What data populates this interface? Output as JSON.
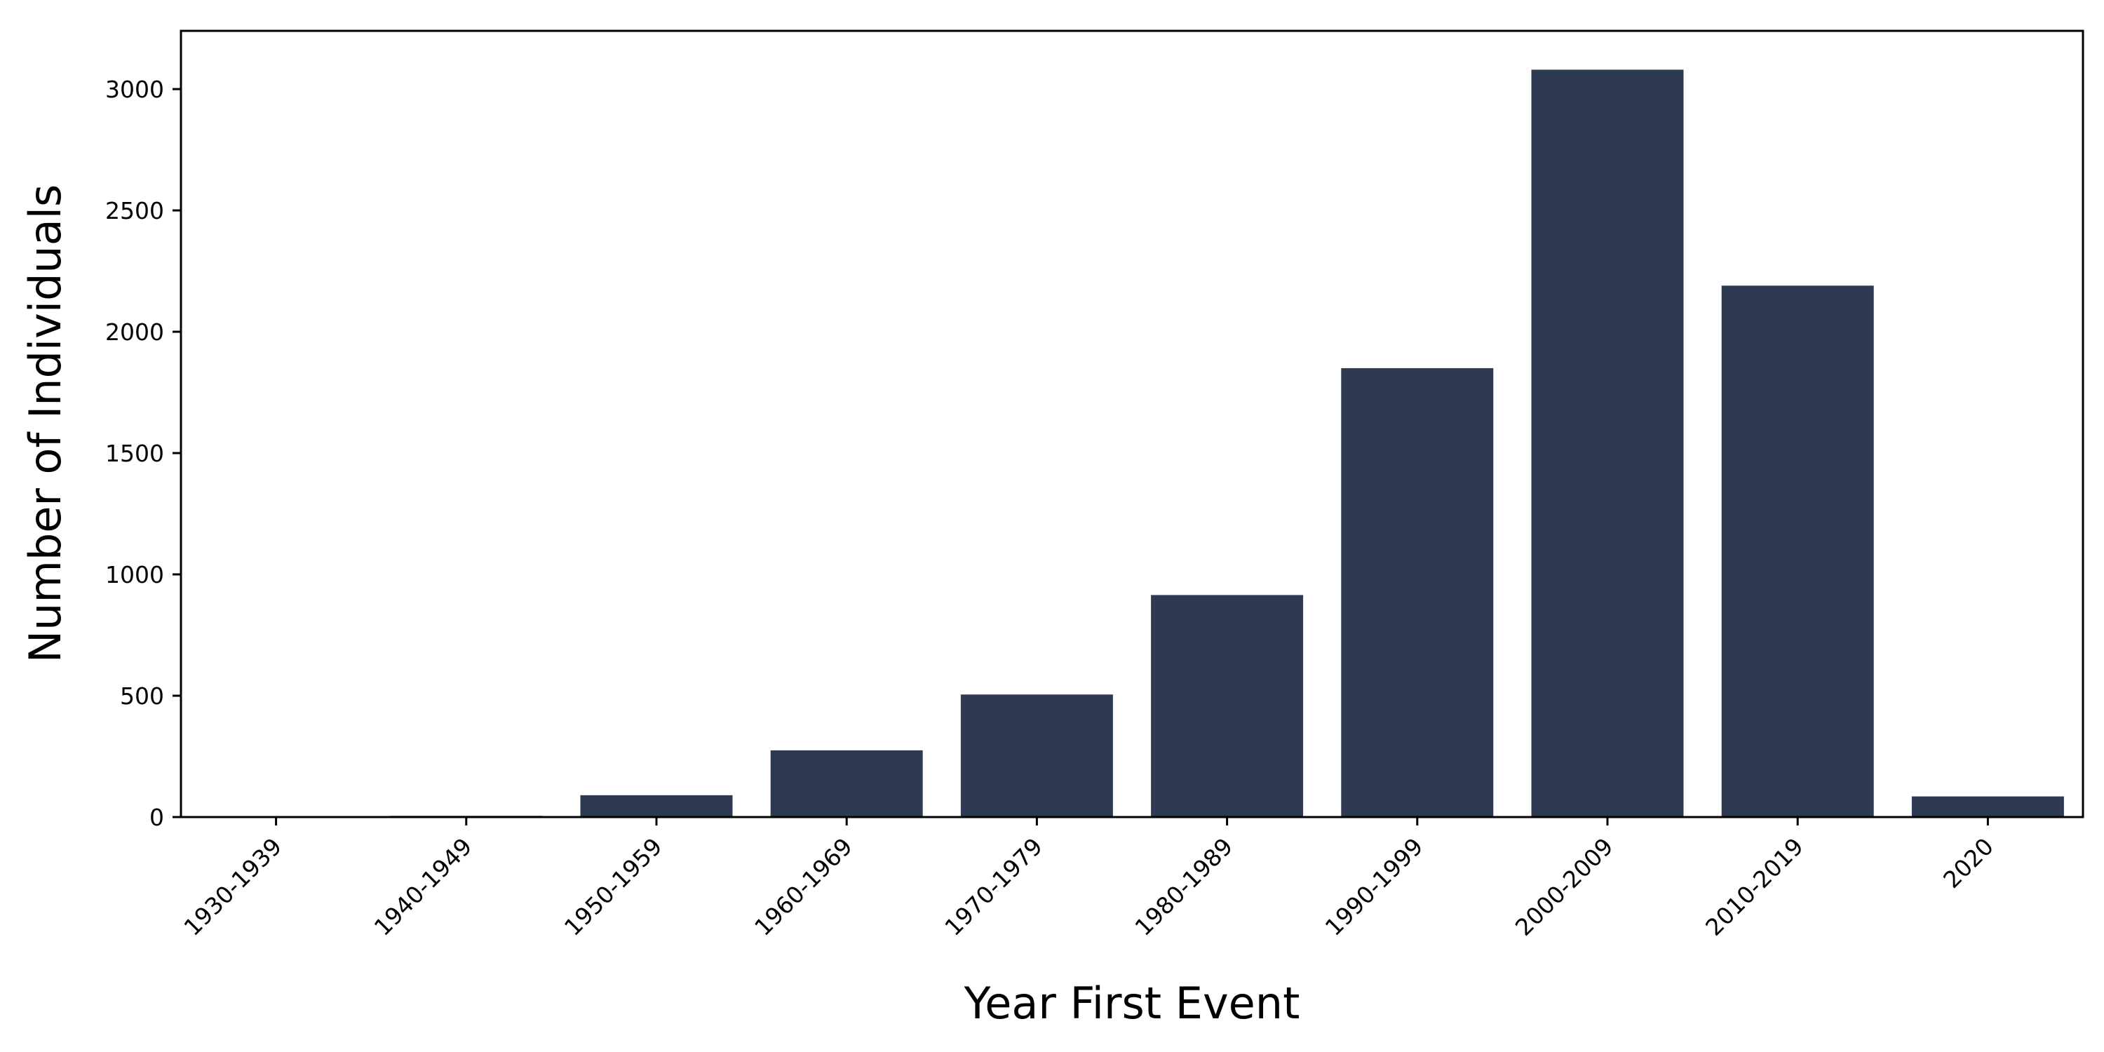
{
  "chart_data": {
    "type": "bar",
    "title": "",
    "xlabel": "Year First Event",
    "ylabel": "Number of Individuals",
    "categories": [
      "1930-1939",
      "1940-1949",
      "1950-1959",
      "1960-1969",
      "1970-1979",
      "1980-1989",
      "1990-1999",
      "2000-2009",
      "2010-2019",
      "2020"
    ],
    "values": [
      1,
      5,
      90,
      275,
      505,
      915,
      1850,
      3080,
      2190,
      85
    ],
    "ylim": [
      0,
      3240
    ],
    "yticks": [
      0,
      500,
      1000,
      1500,
      2000,
      2500,
      3000
    ],
    "grid": false,
    "legend": "none",
    "bar_color": "#2d3a52"
  }
}
